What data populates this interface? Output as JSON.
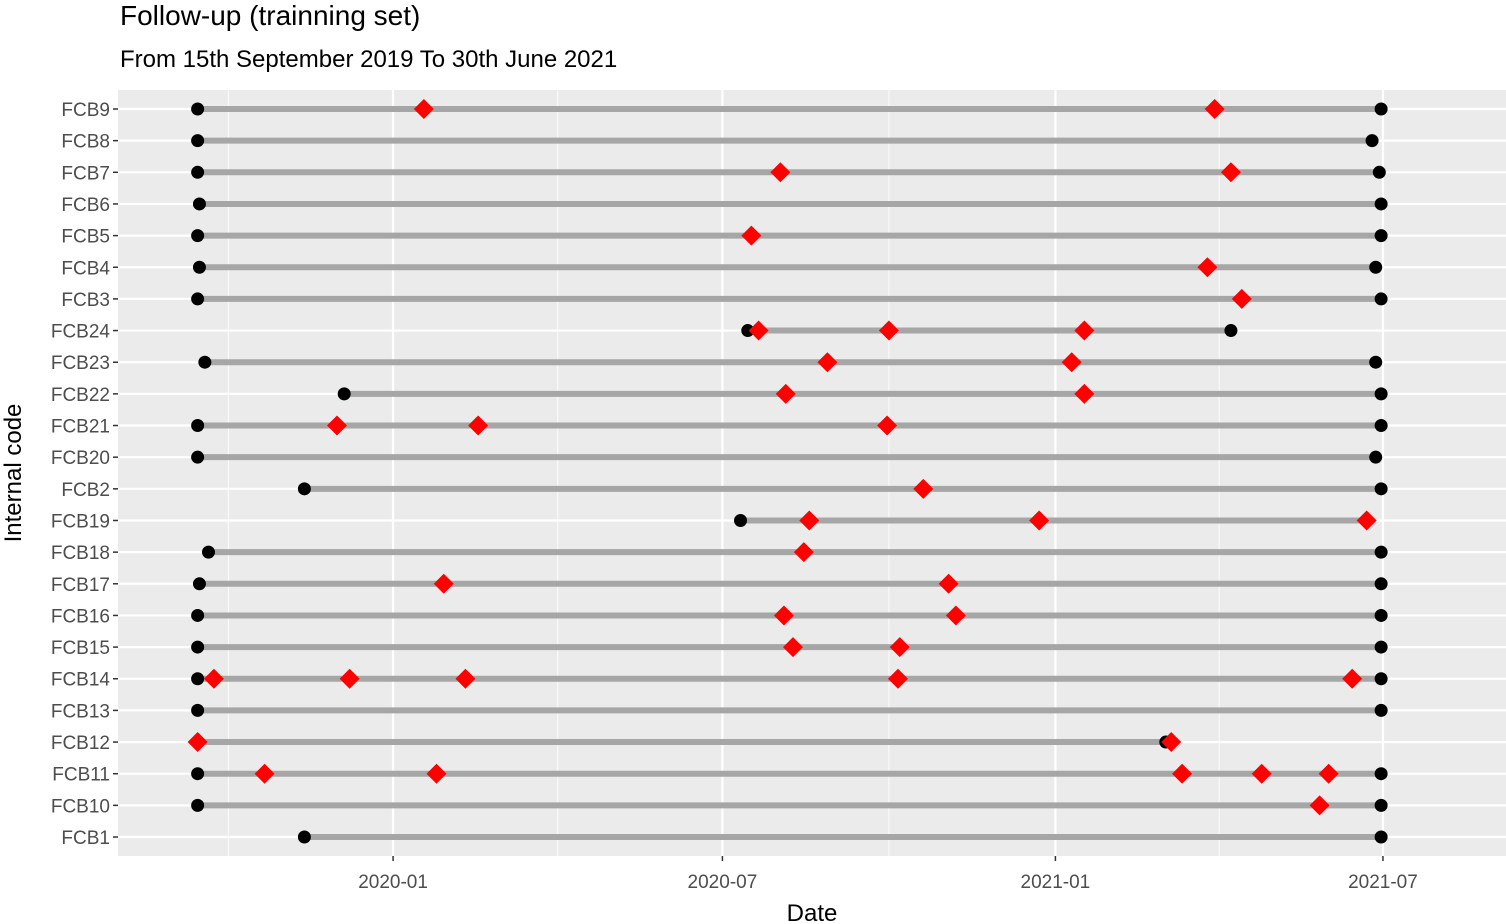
{
  "chart_data": {
    "type": "dumbbell-timeline",
    "title": "Follow-up (trainning set)",
    "subtitle": "From 15th September 2019 To 30th June 2021",
    "xlabel": "Date",
    "ylabel": "Internal code",
    "x_axis": {
      "type": "date",
      "range": [
        "2019-08-02",
        "2021-09-07"
      ],
      "ticks": [
        "2020-01-01",
        "2020-07-01",
        "2021-01-01",
        "2021-07-01"
      ],
      "tick_labels": [
        "2020-01",
        "2020-07",
        "2021-01",
        "2021-07"
      ]
    },
    "y_categories": [
      "FCB1",
      "FCB10",
      "FCB11",
      "FCB12",
      "FCB13",
      "FCB14",
      "FCB15",
      "FCB16",
      "FCB17",
      "FCB18",
      "FCB19",
      "FCB2",
      "FCB20",
      "FCB21",
      "FCB22",
      "FCB23",
      "FCB24",
      "FCB3",
      "FCB4",
      "FCB5",
      "FCB6",
      "FCB7",
      "FCB8",
      "FCB9"
    ],
    "grid": true,
    "colors": {
      "panel": "#ebebeb",
      "grid": "#ffffff",
      "segment": "#a6a6a6",
      "endpoint": "#000000",
      "event": "#ff0000"
    },
    "series": [
      {
        "code": "FCB1",
        "start": "2019-11-13",
        "end": "2021-06-30",
        "events": []
      },
      {
        "code": "FCB10",
        "start": "2019-09-15",
        "end": "2021-06-30",
        "events": [
          "2021-05-27"
        ]
      },
      {
        "code": "FCB11",
        "start": "2019-09-15",
        "end": "2021-06-30",
        "events": [
          "2019-10-22",
          "2020-01-25",
          "2021-03-12",
          "2021-04-25",
          "2021-06-01"
        ]
      },
      {
        "code": "FCB12",
        "start": "2019-09-15",
        "end": "2021-03-03",
        "events": [
          "2019-09-15",
          "2021-03-06"
        ]
      },
      {
        "code": "FCB13",
        "start": "2019-09-15",
        "end": "2021-06-30",
        "events": []
      },
      {
        "code": "FCB14",
        "start": "2019-09-15",
        "end": "2021-06-30",
        "events": [
          "2019-09-24",
          "2019-12-08",
          "2020-02-10",
          "2020-10-06",
          "2021-06-14"
        ]
      },
      {
        "code": "FCB15",
        "start": "2019-09-15",
        "end": "2021-06-30",
        "events": [
          "2020-08-09",
          "2020-10-07"
        ]
      },
      {
        "code": "FCB16",
        "start": "2019-09-15",
        "end": "2021-06-30",
        "events": [
          "2020-08-04",
          "2020-11-07"
        ]
      },
      {
        "code": "FCB17",
        "start": "2019-09-16",
        "end": "2021-06-30",
        "events": [
          "2020-01-29",
          "2020-11-03"
        ]
      },
      {
        "code": "FCB18",
        "start": "2019-09-21",
        "end": "2021-06-30",
        "events": [
          "2020-08-15"
        ]
      },
      {
        "code": "FCB19",
        "start": "2020-07-11",
        "end": "2021-06-22",
        "events": [
          "2020-08-18",
          "2020-12-23",
          "2021-06-22"
        ]
      },
      {
        "code": "FCB2",
        "start": "2019-11-13",
        "end": "2021-06-30",
        "events": [
          "2020-10-20"
        ]
      },
      {
        "code": "FCB20",
        "start": "2019-09-15",
        "end": "2021-06-27",
        "events": []
      },
      {
        "code": "FCB21",
        "start": "2019-09-15",
        "end": "2021-06-30",
        "events": [
          "2019-12-01",
          "2020-02-17",
          "2020-09-30"
        ]
      },
      {
        "code": "FCB22",
        "start": "2019-12-05",
        "end": "2021-06-30",
        "events": [
          "2020-08-05",
          "2021-01-17"
        ]
      },
      {
        "code": "FCB23",
        "start": "2019-09-19",
        "end": "2021-06-27",
        "events": [
          "2020-08-28",
          "2021-01-10"
        ]
      },
      {
        "code": "FCB24",
        "start": "2020-07-15",
        "end": "2021-04-08",
        "events": [
          "2020-07-21",
          "2020-10-01",
          "2021-01-17"
        ]
      },
      {
        "code": "FCB3",
        "start": "2019-09-15",
        "end": "2021-06-30",
        "events": [
          "2021-04-14"
        ]
      },
      {
        "code": "FCB4",
        "start": "2019-09-16",
        "end": "2021-06-27",
        "events": [
          "2021-03-26"
        ]
      },
      {
        "code": "FCB5",
        "start": "2019-09-15",
        "end": "2021-06-30",
        "events": [
          "2020-07-17"
        ]
      },
      {
        "code": "FCB6",
        "start": "2019-09-16",
        "end": "2021-06-30",
        "events": []
      },
      {
        "code": "FCB7",
        "start": "2019-09-15",
        "end": "2021-06-29",
        "events": [
          "2020-08-02",
          "2021-04-08"
        ]
      },
      {
        "code": "FCB8",
        "start": "2019-09-15",
        "end": "2021-06-25",
        "events": []
      },
      {
        "code": "FCB9",
        "start": "2019-09-15",
        "end": "2021-06-30",
        "events": [
          "2020-01-18",
          "2021-03-30"
        ]
      }
    ]
  }
}
